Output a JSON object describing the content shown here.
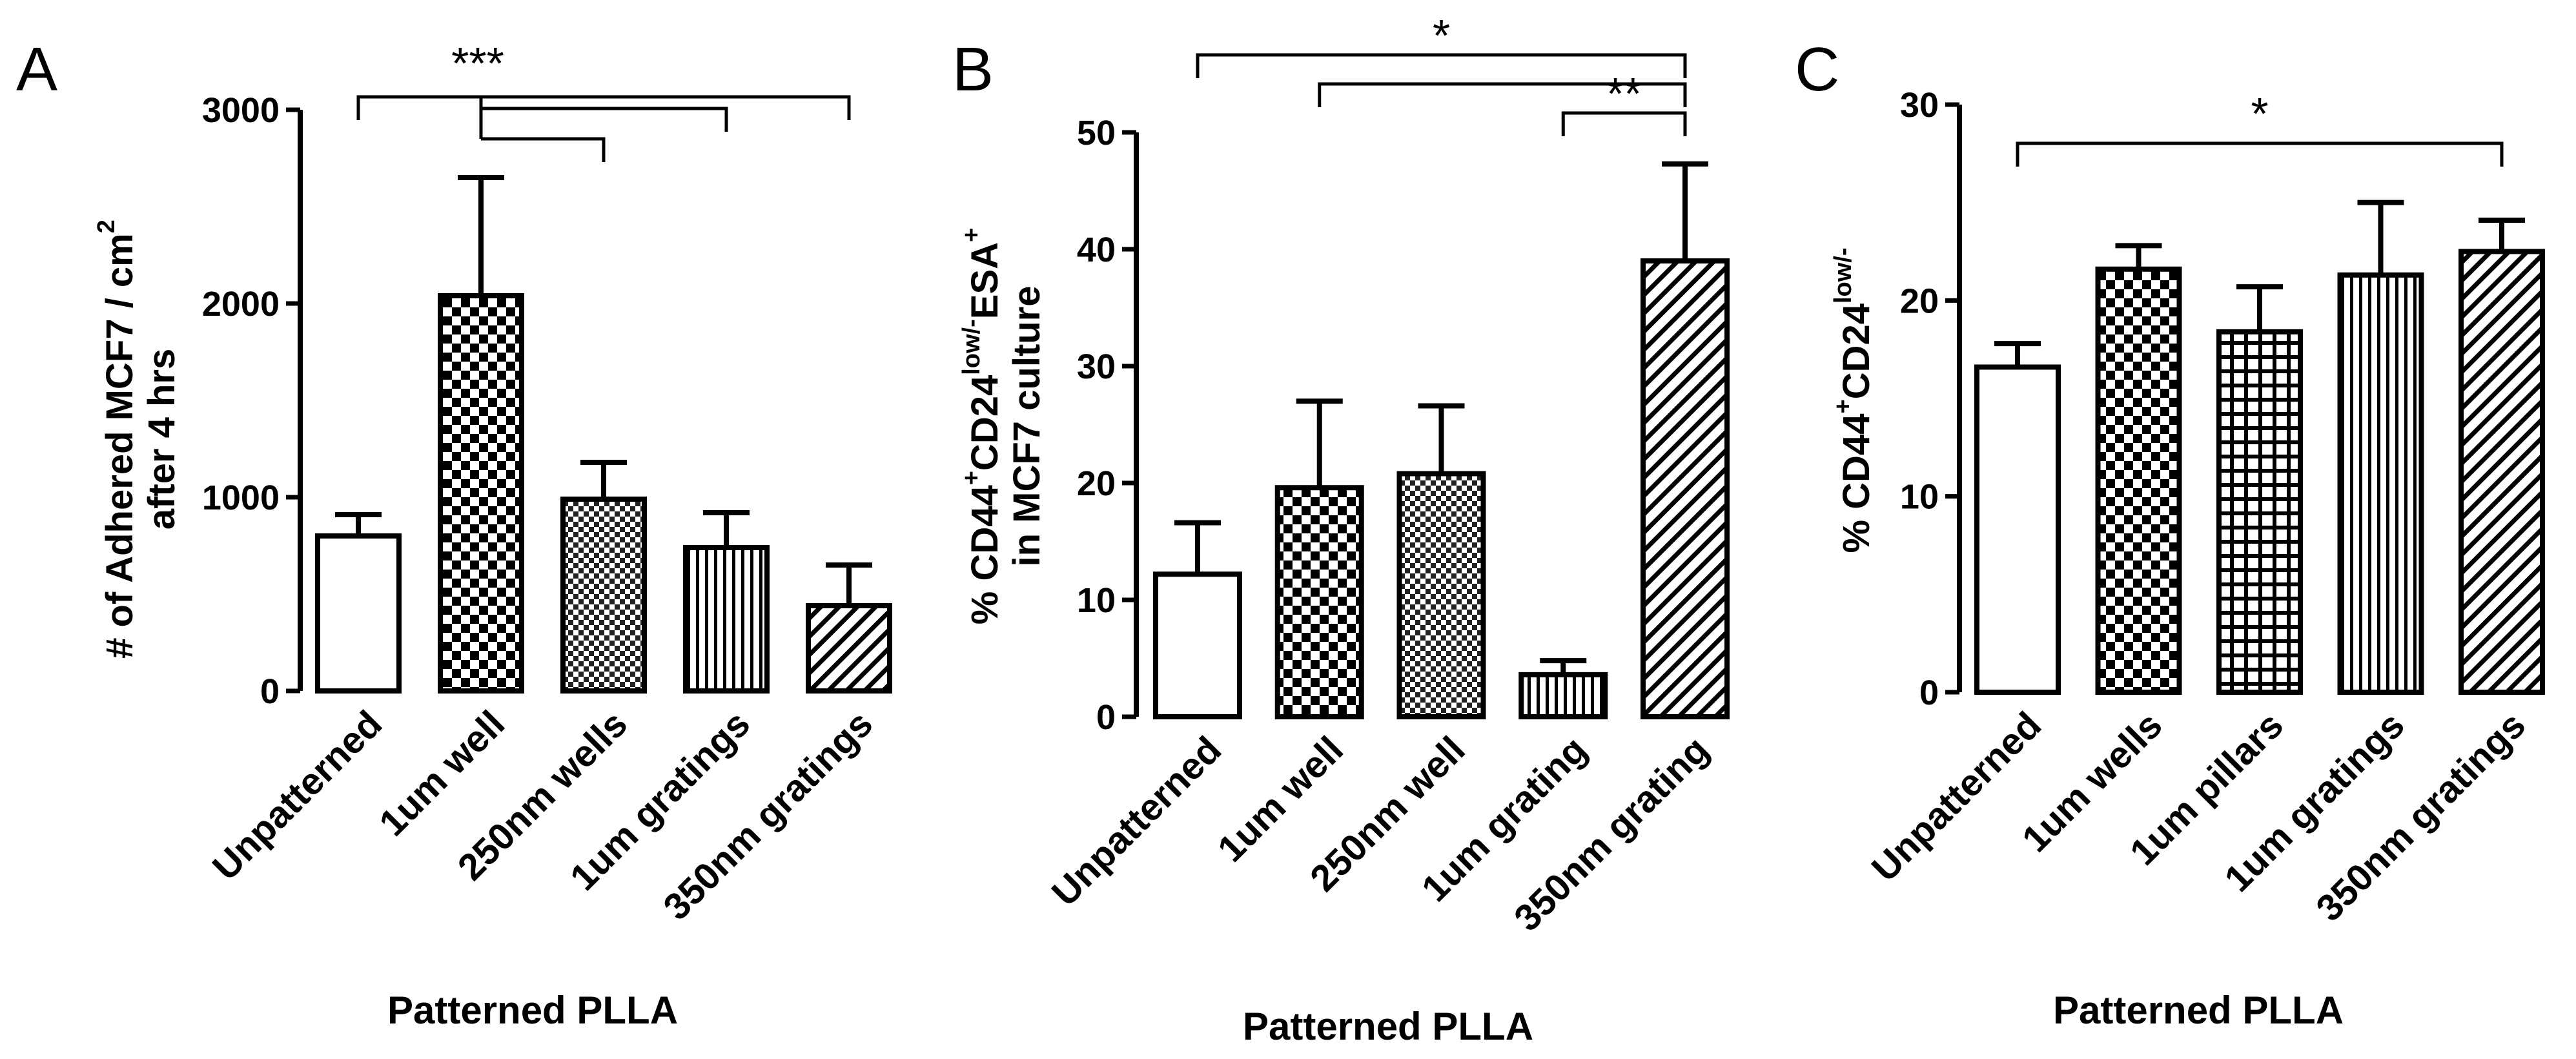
{
  "chart_data": [
    {
      "type": "bar",
      "panel": "A",
      "categories": [
        "Unpatterned",
        "1um well",
        "250nm wells",
        "1um gratings",
        "350nm gratings"
      ],
      "values": [
        800,
        2040,
        990,
        740,
        440
      ],
      "errors": [
        110,
        610,
        190,
        180,
        210
      ],
      "patterns": [
        "none",
        "checker",
        "checker-fine",
        "vertical",
        "diagonal"
      ],
      "yticks": [
        0,
        1000,
        2000,
        3000
      ],
      "ylim": [
        0,
        3000
      ],
      "ylabel_line1": "# of Adhered MCF7 / cm",
      "ylabel_sup": "2",
      "ylabel_line2": "after 4 hrs",
      "xlabel": "Patterned PLLA",
      "significance": [
        {
          "label": "***",
          "from": 0,
          "to": [
            1,
            2,
            3,
            4
          ]
        },
        {
          "label": "",
          "from": 1,
          "to": [
            2,
            3,
            4
          ]
        }
      ]
    },
    {
      "type": "bar",
      "panel": "B",
      "categories": [
        "Unpatterned",
        "1um well",
        "250nm well",
        "1um grating",
        "350nm grating"
      ],
      "values": [
        12.2,
        19.6,
        20.8,
        3.6,
        39.0
      ],
      "errors": [
        4.4,
        7.4,
        5.8,
        1.2,
        8.3
      ],
      "patterns": [
        "none",
        "checker",
        "checker-fine",
        "vertical",
        "diagonal"
      ],
      "yticks": [
        0,
        10,
        20,
        30,
        40,
        50
      ],
      "ylim": [
        0,
        50
      ],
      "ylabel_parts": [
        "% CD44",
        "+",
        "CD24",
        "low/-",
        "ESA",
        "+"
      ],
      "ylabel_line2": "in  MCF7 culture",
      "xlabel": "Patterned PLLA",
      "significance": [
        {
          "label": "*",
          "from": 0,
          "to": 4
        },
        {
          "label": "",
          "from": 1,
          "to": 4
        },
        {
          "label": "**",
          "from": 3,
          "to": 4
        }
      ]
    },
    {
      "type": "bar",
      "panel": "C",
      "categories": [
        "Unpatterned",
        "1um wells",
        "1um pillars",
        "1um gratings",
        "350nm gratings"
      ],
      "values": [
        16.6,
        21.6,
        18.4,
        21.3,
        22.5
      ],
      "errors": [
        1.2,
        1.2,
        2.3,
        3.7,
        1.6
      ],
      "patterns": [
        "none",
        "checker",
        "grid",
        "vertical",
        "diagonal"
      ],
      "yticks": [
        0,
        10,
        20,
        30
      ],
      "ylim": [
        0,
        30
      ],
      "ylabel_parts": [
        "% CD44",
        "+",
        "CD24",
        "low/-"
      ],
      "xlabel": "Patterned PLLA",
      "significance": [
        {
          "label": "*",
          "from": 0,
          "to": 4
        }
      ]
    }
  ]
}
